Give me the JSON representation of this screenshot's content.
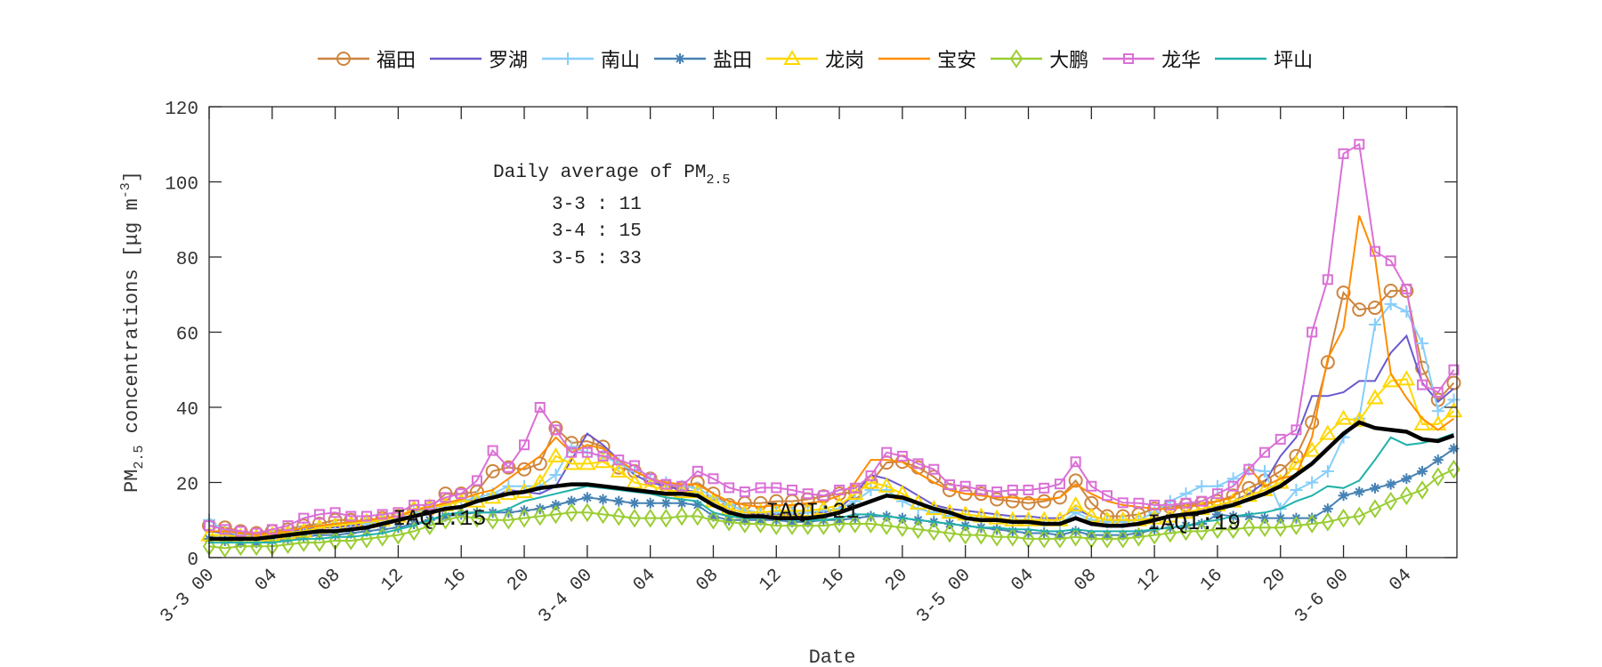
{
  "chart_data": {
    "type": "line",
    "xlabel": "Date",
    "ylabel": {
      "pm": "PM",
      "sub": "2.5",
      "rest": " concentrations [μg m",
      "sup": "-3",
      "end": "]"
    },
    "ylim": [
      0,
      120
    ],
    "yticks": [
      0,
      20,
      40,
      60,
      80,
      100,
      120
    ],
    "x_hours_range": [
      0,
      79
    ],
    "xtick_hours": [
      0,
      4,
      8,
      12,
      16,
      20,
      24,
      28,
      32,
      36,
      40,
      44,
      48,
      52,
      56,
      60,
      64,
      68,
      72,
      76
    ],
    "xtick_labels": [
      "3-3 00",
      "04",
      "08",
      "12",
      "16",
      "20",
      "3-4 00",
      "04",
      "08",
      "12",
      "16",
      "20",
      "3-5 00",
      "04",
      "08",
      "12",
      "16",
      "20",
      "3-6 00",
      "04"
    ],
    "grid": false,
    "legend_position": "top (outside, horizontal)",
    "annotation": {
      "title": "Daily average of PM",
      "title_sub": "2.5",
      "lines": [
        "3-3 : 11",
        "3-4 : 15",
        "3-5 : 33"
      ]
    },
    "iaqi_labels": [
      {
        "text": "IAQI:15",
        "hour": 12
      },
      {
        "text": "IAQI:21",
        "hour": 36
      },
      {
        "text": "IAQI:19",
        "hour": 60
      }
    ],
    "mean_series": {
      "color": "#000000",
      "values": [
        5,
        5,
        5,
        5,
        5.5,
        6,
        6.5,
        7,
        7,
        7.5,
        8,
        9,
        10,
        11,
        12,
        13,
        13.5,
        15,
        16,
        17,
        17.5,
        18.5,
        19,
        19.5,
        19.5,
        19,
        18.5,
        18,
        17.5,
        17,
        17,
        16.5,
        14,
        12,
        11,
        11,
        10.5,
        10.5,
        10.5,
        11,
        12,
        13.5,
        15,
        16.5,
        16,
        14.5,
        13,
        12,
        10.5,
        10,
        10,
        9.5,
        9.5,
        9,
        9,
        10.5,
        9,
        8.5,
        8.5,
        9,
        10,
        11,
        11.5,
        12,
        13,
        14,
        15.5,
        17,
        19,
        22,
        25,
        29,
        33,
        36,
        34.5,
        34,
        33.5,
        31.5,
        31,
        32.5
      ]
    },
    "series": [
      {
        "name": "福田",
        "color": "#CD853F",
        "marker": "circle",
        "values": [
          8.5,
          8,
          7,
          6.5,
          7,
          7.5,
          8.5,
          9,
          10,
          10,
          9.5,
          10.5,
          11,
          12.5,
          13,
          17,
          17,
          17.5,
          23,
          24,
          23.5,
          25,
          34.5,
          30.5,
          31,
          29.5,
          24,
          23,
          21,
          19,
          18.5,
          20,
          17,
          14,
          14.5,
          14.5,
          15,
          15,
          15.5,
          16.3,
          17,
          17.5,
          20,
          25.3,
          25.5,
          24,
          21.5,
          18,
          17,
          17,
          15.5,
          15,
          14.5,
          15,
          16,
          20.5,
          14.5,
          11,
          11,
          11.5,
          13,
          13.5,
          14,
          14.5,
          15,
          16.5,
          18.5,
          20.5,
          23,
          27,
          36,
          52,
          70.5,
          66,
          66.5,
          71,
          71,
          50.5,
          42,
          46.5
        ]
      },
      {
        "name": "罗湖",
        "color": "#6A5ACD",
        "marker": "none",
        "values": [
          7,
          6.5,
          6,
          6,
          6.5,
          7,
          7.5,
          8,
          8,
          8.5,
          9,
          10,
          11,
          12,
          13,
          14,
          15,
          15.5,
          16,
          18,
          17.5,
          17,
          19,
          26,
          33,
          30,
          26,
          22,
          20,
          19,
          18,
          17.5,
          15,
          13,
          12,
          11.5,
          11.5,
          11.5,
          12,
          12,
          13,
          17,
          22,
          21,
          19,
          16.5,
          14,
          13,
          12.5,
          12,
          11.5,
          11,
          11,
          10.5,
          10.5,
          13,
          11,
          10,
          10,
          10,
          10.5,
          11,
          12,
          12.5,
          13.5,
          15,
          17,
          20,
          27,
          32,
          43,
          43,
          44,
          47,
          47,
          54.5,
          59,
          46.5,
          41.5,
          45
        ]
      },
      {
        "name": "南山",
        "color": "#87CEFA",
        "marker": "plus",
        "values": [
          10,
          7,
          6,
          6,
          6.5,
          7,
          8,
          8.5,
          9,
          9.5,
          9,
          10,
          11,
          12,
          13,
          14,
          15,
          16,
          17,
          19,
          19,
          19,
          22,
          29.5,
          28,
          27,
          25,
          23,
          21,
          20,
          19,
          18.5,
          16,
          14,
          12.5,
          12,
          12,
          12,
          12,
          12.5,
          13,
          15,
          18,
          18,
          15,
          13,
          12,
          11,
          10.5,
          10,
          10,
          9.5,
          9.5,
          9,
          9,
          12,
          10,
          9.5,
          9.5,
          10,
          12,
          15,
          17,
          19,
          19,
          21,
          23.5,
          23,
          13,
          18,
          20,
          23,
          32,
          37,
          62,
          67.5,
          65.5,
          57,
          39,
          42
        ]
      },
      {
        "name": "盐田",
        "color": "#4682B4",
        "marker": "asterisk",
        "values": [
          5,
          4.5,
          4,
          4,
          4.5,
          5,
          5.5,
          6,
          6,
          6.5,
          7,
          7.5,
          8,
          9,
          10,
          11,
          11.5,
          12,
          12,
          12,
          12.5,
          13,
          14,
          15,
          16,
          15.5,
          15,
          14.5,
          14.5,
          14.5,
          14.5,
          14,
          11,
          10,
          10,
          10,
          10,
          9.5,
          9.5,
          10,
          10,
          10.5,
          11,
          11,
          10.5,
          10,
          9.5,
          9,
          8.5,
          8,
          7.5,
          7,
          6.5,
          6.5,
          6,
          7,
          6,
          6,
          6,
          6.5,
          7.5,
          8,
          8.5,
          9,
          11.5,
          11,
          11,
          10.5,
          10.5,
          10.5,
          10.5,
          13,
          16.5,
          17.5,
          18.5,
          19.5,
          21,
          23,
          26,
          29
        ]
      },
      {
        "name": "龙岗",
        "color": "#FFD700",
        "marker": "triangle",
        "values": [
          6,
          6,
          5.5,
          5.5,
          6,
          6.5,
          7,
          8,
          8.5,
          9,
          9.5,
          10,
          11,
          13,
          13.5,
          14,
          15,
          15,
          16,
          17,
          17.5,
          20,
          27,
          25,
          25,
          25.5,
          23,
          20,
          19,
          18,
          17.5,
          17.5,
          15,
          13,
          12,
          12,
          12.5,
          12.5,
          12.5,
          13,
          14,
          17,
          20,
          19,
          17,
          14.5,
          13,
          12,
          11.5,
          11,
          10.5,
          10,
          10,
          10,
          10,
          14,
          11,
          10,
          10,
          10,
          10.5,
          11,
          12,
          13,
          14,
          15,
          16.5,
          18,
          20,
          25,
          28.5,
          33,
          37,
          36.5,
          42.5,
          47,
          47.5,
          35.5,
          35.5,
          39
        ]
      },
      {
        "name": "宝安",
        "color": "#FF8C00",
        "marker": "none",
        "values": [
          7,
          7,
          6.5,
          6,
          6.5,
          7,
          8,
          8.5,
          9,
          9.5,
          10,
          10.5,
          11,
          12.5,
          13.5,
          14.5,
          15.5,
          17,
          18,
          21,
          24,
          27,
          32,
          28,
          30,
          29,
          26,
          23,
          21,
          20,
          19.5,
          19.5,
          17,
          15,
          14,
          13.5,
          14,
          14,
          14.5,
          15,
          16.5,
          20,
          26,
          26,
          25.5,
          22.5,
          20,
          18,
          17,
          16.5,
          16,
          16,
          15.5,
          15.5,
          16,
          19.5,
          17,
          15,
          14,
          13.5,
          13,
          13,
          13.5,
          14,
          15,
          16,
          24,
          19,
          21,
          22,
          32,
          53,
          61,
          91,
          80,
          49,
          42.5,
          37,
          34,
          37
        ]
      },
      {
        "name": "大鹏",
        "color": "#9ACD32",
        "marker": "diamond",
        "values": [
          3,
          2.5,
          3,
          3,
          3,
          3.5,
          4,
          4,
          4.5,
          4.5,
          5,
          5.5,
          6,
          7,
          8.5,
          10,
          11,
          10.5,
          10,
          10,
          10.5,
          11,
          11.5,
          12,
          12,
          11.5,
          11,
          10.5,
          10.5,
          10.5,
          11,
          11,
          10,
          9.5,
          9,
          9,
          8.5,
          8.5,
          8.5,
          8.5,
          9,
          9,
          9,
          8.5,
          8,
          7.5,
          7,
          6.5,
          6,
          6,
          5.5,
          5.5,
          5,
          5,
          5,
          5.5,
          5,
          5,
          5,
          5.5,
          6,
          6.5,
          7,
          7,
          7.5,
          7.5,
          8,
          8,
          8,
          8.5,
          9,
          9.5,
          10.5,
          11,
          13,
          15,
          16.5,
          18,
          21.5,
          23.5
        ]
      },
      {
        "name": "龙华",
        "color": "#DA70D6",
        "marker": "square",
        "values": [
          8.5,
          7.5,
          7,
          6.5,
          7.5,
          8.5,
          10.5,
          11.5,
          12,
          11,
          11,
          11.5,
          12,
          14,
          14,
          16,
          17,
          20.5,
          28.5,
          24,
          30,
          40,
          34,
          28,
          28,
          27,
          26,
          24.5,
          21,
          19.5,
          19,
          23,
          21,
          18.6,
          17.5,
          18.6,
          18.6,
          18,
          17,
          16.5,
          18,
          18.5,
          21.8,
          28,
          27,
          25,
          23.5,
          19.4,
          19,
          18,
          17.5,
          18,
          18,
          18.5,
          19.6,
          25.5,
          19,
          16.5,
          14.6,
          14.5,
          14,
          14,
          14.5,
          15,
          17,
          19,
          23.5,
          28,
          31.5,
          34,
          60,
          74,
          107.5,
          110,
          81.5,
          79,
          71.5,
          46,
          44,
          50
        ]
      },
      {
        "name": "坪山",
        "color": "#20B2AA",
        "marker": "none",
        "values": [
          4,
          4,
          4,
          4,
          4,
          4.5,
          5,
          5,
          5.5,
          5.5,
          6,
          6.5,
          7.5,
          8.5,
          10,
          11.5,
          12,
          12,
          12,
          13,
          15,
          16,
          17,
          18,
          19,
          18.5,
          18,
          17.5,
          17,
          16,
          15.5,
          15,
          12,
          11,
          10.5,
          10.5,
          10.5,
          10,
          10,
          10,
          10.5,
          11.5,
          11.5,
          11,
          10.5,
          10,
          9.5,
          9,
          8.5,
          8,
          8,
          7.5,
          7.5,
          7,
          7,
          7.5,
          7,
          7,
          7,
          7,
          7.5,
          8,
          8.5,
          9.5,
          10,
          11,
          11.5,
          12,
          13,
          15,
          16.5,
          19,
          18.5,
          20.5,
          26,
          32,
          30,
          30.5,
          31.5,
          33
        ]
      }
    ]
  }
}
